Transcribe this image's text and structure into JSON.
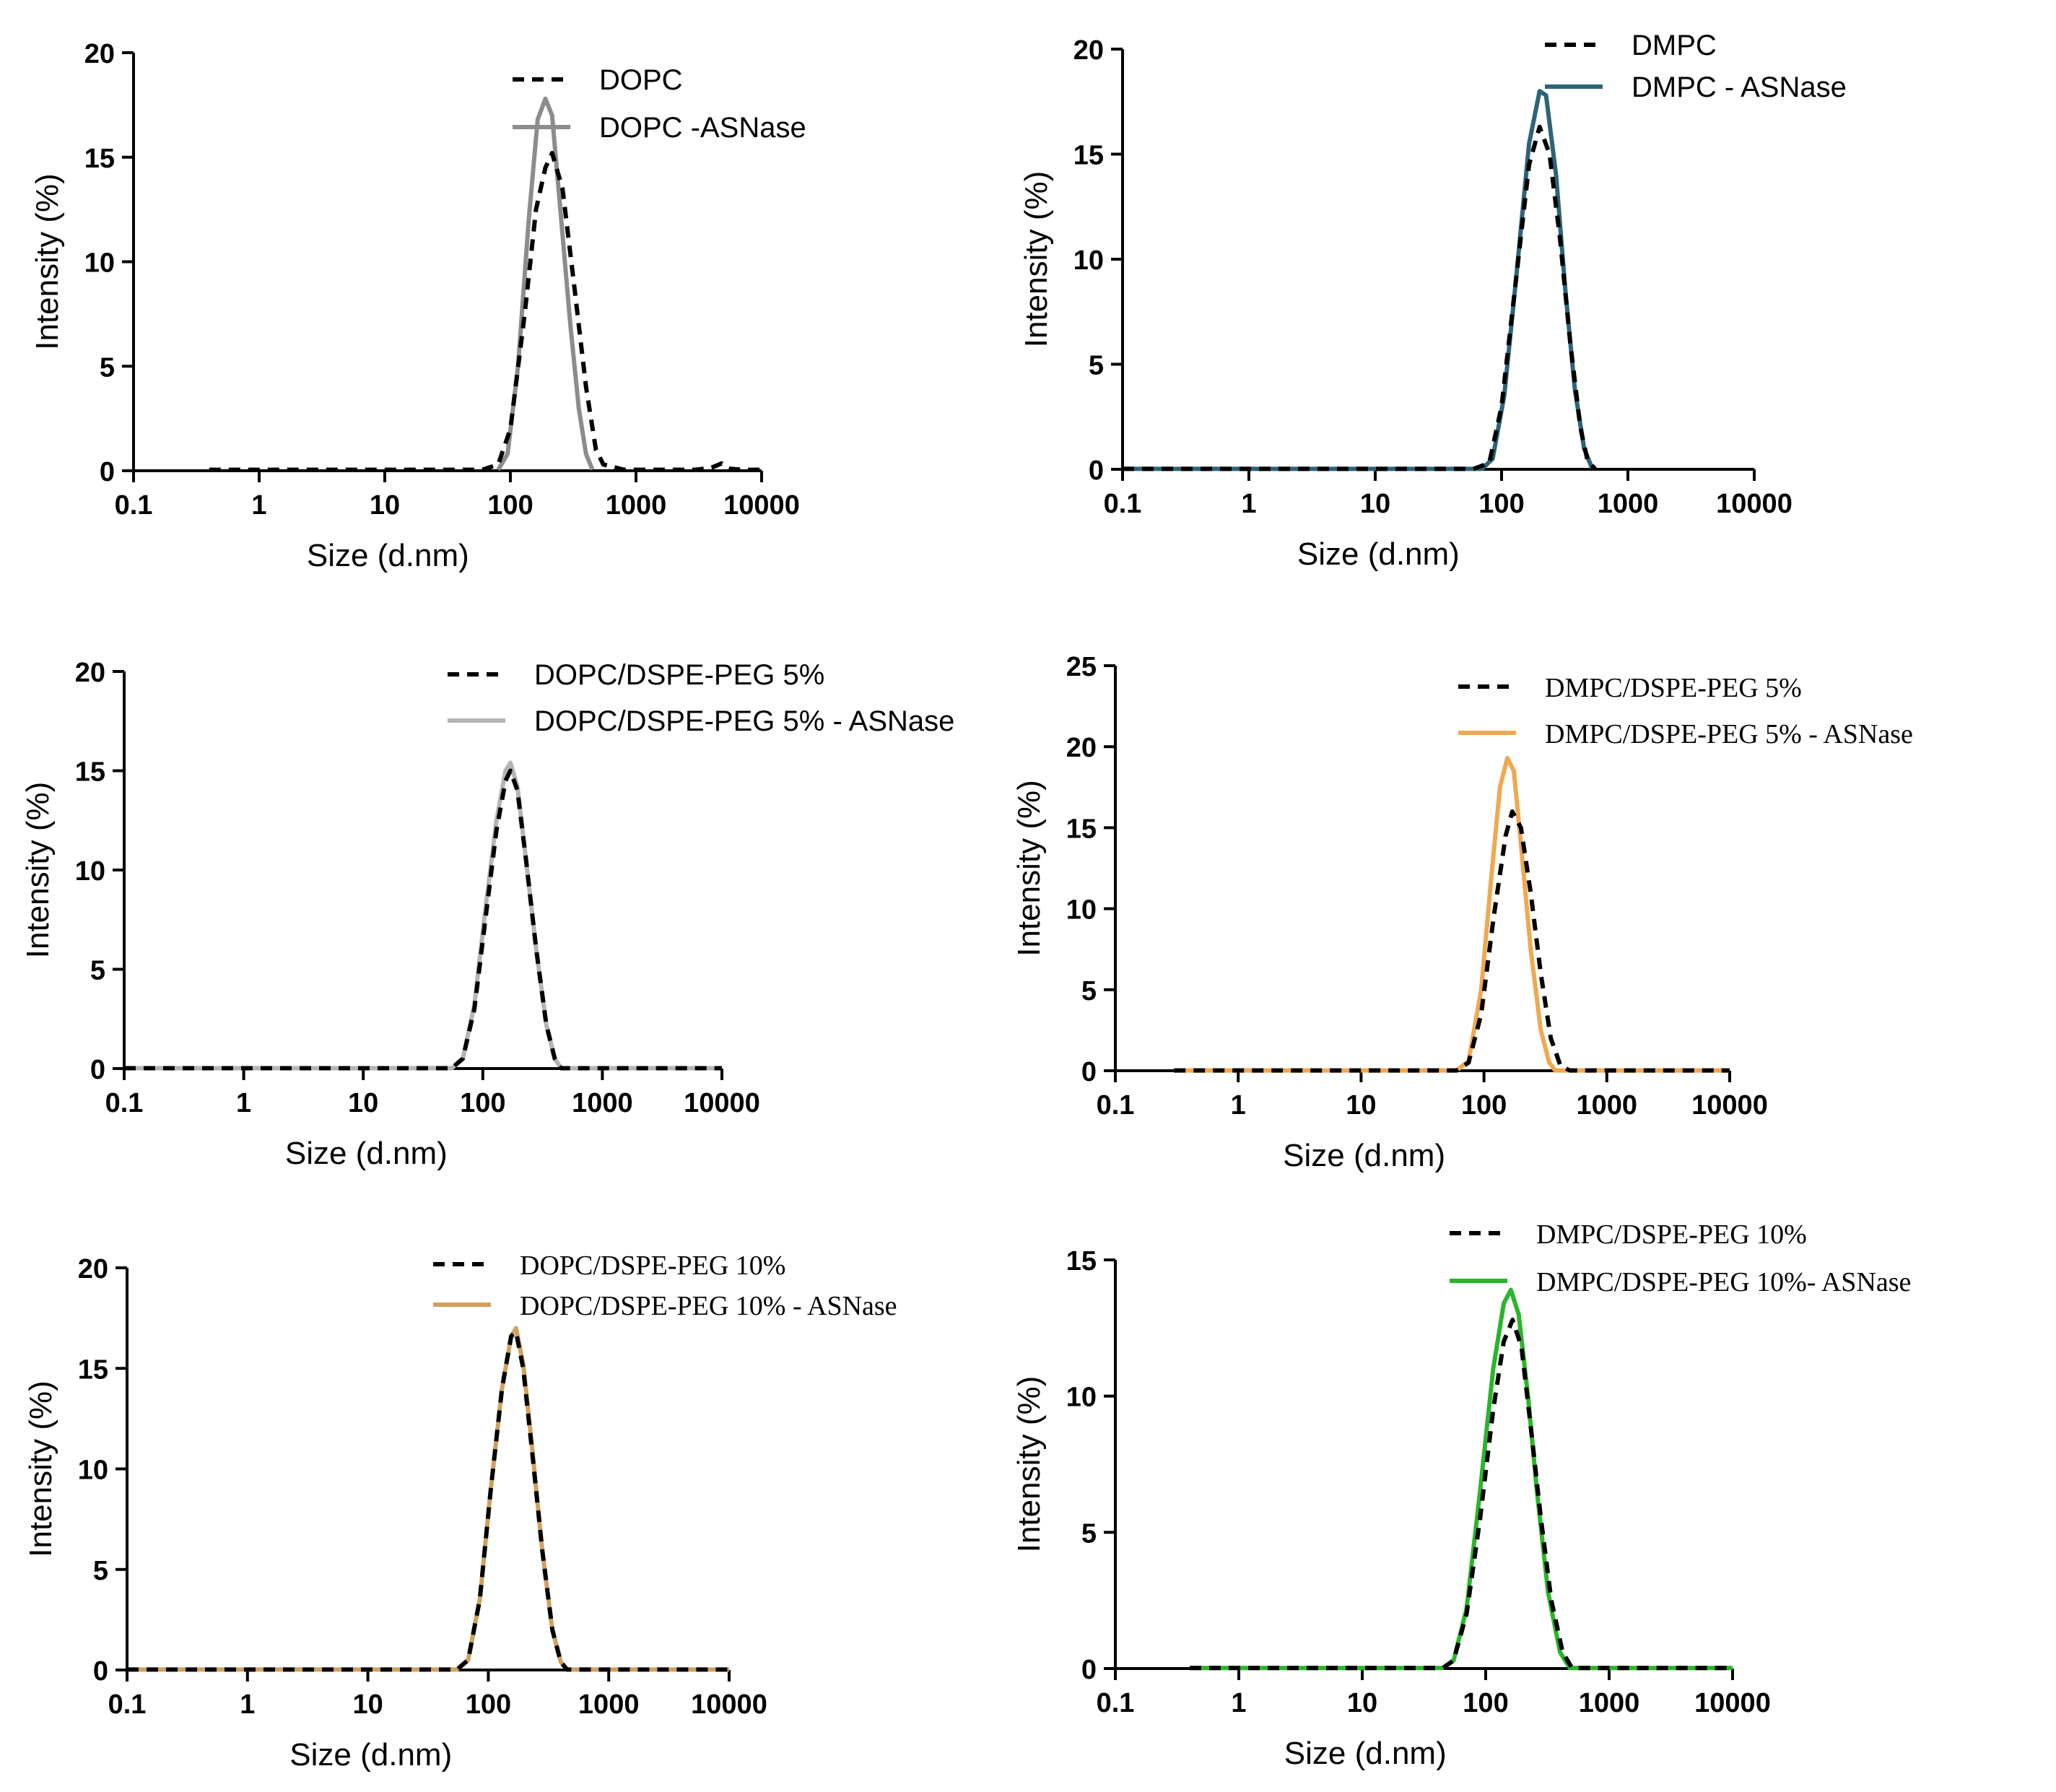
{
  "chart_data": [
    {
      "type": "line",
      "xscale": "log",
      "xlim": [
        0.1,
        10000
      ],
      "ylim": [
        0,
        20
      ],
      "xticks": [
        "0.1",
        "1",
        "10",
        "100",
        "1000",
        "10000"
      ],
      "yticks": [
        "0",
        "5",
        "10",
        "15",
        "20"
      ],
      "xlabel": "Size (d.nm)",
      "ylabel": "Intensity (%)",
      "legend_font": "sans",
      "series": [
        {
          "name": "DOPC",
          "color": "#000000",
          "style": "dashed",
          "points": [
            [
              0.4,
              0.05
            ],
            [
              1,
              0.05
            ],
            [
              10,
              0.05
            ],
            [
              60,
              0.05
            ],
            [
              80,
              0.3
            ],
            [
              100,
              2
            ],
            [
              130,
              7.5
            ],
            [
              160,
              12.5
            ],
            [
              190,
              14.5
            ],
            [
              215,
              15.2
            ],
            [
              260,
              13.5
            ],
            [
              320,
              9
            ],
            [
              400,
              4
            ],
            [
              480,
              1
            ],
            [
              550,
              0.3
            ],
            [
              800,
              0.05
            ],
            [
              3000,
              0.05
            ],
            [
              4000,
              0.15
            ],
            [
              4800,
              0.35
            ],
            [
              5500,
              0.1
            ],
            [
              7000,
              0.05
            ],
            [
              10000,
              0.05
            ]
          ]
        },
        {
          "name": "DOPC -ASNase",
          "color": "#8c8c8c",
          "style": "solid",
          "points": [
            [
              80,
              0.05
            ],
            [
              95,
              0.8
            ],
            [
              115,
              5
            ],
            [
              140,
              12
            ],
            [
              165,
              16.8
            ],
            [
              190,
              17.8
            ],
            [
              215,
              17
            ],
            [
              250,
              12.5
            ],
            [
              300,
              7
            ],
            [
              350,
              3
            ],
            [
              400,
              0.8
            ],
            [
              450,
              0.05
            ]
          ]
        }
      ]
    },
    {
      "type": "line",
      "xscale": "log",
      "xlim": [
        0.1,
        10000
      ],
      "ylim": [
        0,
        20
      ],
      "xticks": [
        "0.1",
        "1",
        "10",
        "100",
        "1000",
        "10000"
      ],
      "yticks": [
        "0",
        "5",
        "10",
        "15",
        "20"
      ],
      "xlabel": "Size (d.nm)",
      "ylabel": "Intensity (%)",
      "legend_font": "sans",
      "series": [
        {
          "name": "DMPC",
          "color": "#000000",
          "style": "dashed",
          "points": [
            [
              0.1,
              0.02
            ],
            [
              10,
              0.02
            ],
            [
              60,
              0.02
            ],
            [
              80,
              0.3
            ],
            [
              100,
              3
            ],
            [
              130,
              9
            ],
            [
              165,
              14.5
            ],
            [
              200,
              16.3
            ],
            [
              240,
              15
            ],
            [
              290,
              11
            ],
            [
              350,
              6
            ],
            [
              420,
              2
            ],
            [
              480,
              0.4
            ],
            [
              550,
              0.02
            ]
          ]
        },
        {
          "name": "DMPC - ASNase",
          "color": "#2c6478",
          "style": "solid",
          "points": [
            [
              0.1,
              0.02
            ],
            [
              10,
              0.02
            ],
            [
              70,
              0.02
            ],
            [
              85,
              0.5
            ],
            [
              105,
              3.5
            ],
            [
              130,
              9
            ],
            [
              165,
              15.5
            ],
            [
              200,
              18
            ],
            [
              225,
              17.8
            ],
            [
              270,
              14
            ],
            [
              320,
              8.5
            ],
            [
              380,
              3.8
            ],
            [
              450,
              1
            ],
            [
              520,
              0.05
            ]
          ]
        }
      ]
    },
    {
      "type": "line",
      "xscale": "log",
      "xlim": [
        0.1,
        10000
      ],
      "ylim": [
        0,
        20
      ],
      "xticks": [
        "0.1",
        "1",
        "10",
        "100",
        "1000",
        "10000"
      ],
      "yticks": [
        "0",
        "5",
        "10",
        "15",
        "20"
      ],
      "xlabel": "Size (d.nm)",
      "ylabel": "Intensity (%)",
      "legend_font": "sans",
      "series": [
        {
          "name": "DOPC/DSPE-PEG 5%",
          "color": "#000000",
          "style": "dashed",
          "points": [
            [
              0.1,
              0.02
            ],
            [
              10,
              0.02
            ],
            [
              55,
              0.02
            ],
            [
              68,
              0.5
            ],
            [
              85,
              3
            ],
            [
              105,
              7.5
            ],
            [
              130,
              12
            ],
            [
              155,
              14.5
            ],
            [
              170,
              15
            ],
            [
              195,
              14
            ],
            [
              230,
              10.5
            ],
            [
              280,
              6
            ],
            [
              340,
              2.2
            ],
            [
              400,
              0.5
            ],
            [
              450,
              0.02
            ],
            [
              10000,
              0.02
            ]
          ]
        },
        {
          "name": "DOPC/DSPE-PEG 5% - ASNase",
          "color": "#b4b4b4",
          "style": "solid",
          "points": [
            [
              0.1,
              0.02
            ],
            [
              10,
              0.02
            ],
            [
              55,
              0.02
            ],
            [
              68,
              0.5
            ],
            [
              85,
              3.2
            ],
            [
              105,
              8
            ],
            [
              130,
              12.5
            ],
            [
              155,
              15
            ],
            [
              170,
              15.4
            ],
            [
              195,
              14.2
            ],
            [
              230,
              10.5
            ],
            [
              280,
              6
            ],
            [
              340,
              2.2
            ],
            [
              400,
              0.5
            ],
            [
              450,
              0.02
            ],
            [
              10000,
              0.02
            ]
          ]
        }
      ]
    },
    {
      "type": "line",
      "xscale": "log",
      "xlim": [
        0.1,
        10000
      ],
      "ylim": [
        0,
        25
      ],
      "xticks": [
        "0.1",
        "1",
        "10",
        "100",
        "1000",
        "10000"
      ],
      "yticks": [
        "0",
        "5",
        "10",
        "15",
        "20",
        "25"
      ],
      "xlabel": "Size (d.nm)",
      "ylabel": "Intensity (%)",
      "legend_font": "serif",
      "series": [
        {
          "name": "DMPC/DSPE-PEG 5%",
          "color": "#000000",
          "style": "dashed",
          "points": [
            [
              0.3,
              0.02
            ],
            [
              10,
              0.02
            ],
            [
              60,
              0.02
            ],
            [
              75,
              0.5
            ],
            [
              95,
              3.5
            ],
            [
              120,
              9.5
            ],
            [
              150,
              14.5
            ],
            [
              170,
              16
            ],
            [
              200,
              15
            ],
            [
              240,
              11
            ],
            [
              290,
              6
            ],
            [
              350,
              2
            ],
            [
              420,
              0.3
            ],
            [
              500,
              0.02
            ],
            [
              10000,
              0.02
            ]
          ]
        },
        {
          "name": "DMPC/DSPE-PEG 5% - ASNase",
          "color": "#f0a850",
          "style": "solid",
          "points": [
            [
              0.3,
              0.02
            ],
            [
              10,
              0.02
            ],
            [
              60,
              0.02
            ],
            [
              75,
              0.6
            ],
            [
              95,
              5
            ],
            [
              115,
              12
            ],
            [
              135,
              17.5
            ],
            [
              155,
              19.3
            ],
            [
              175,
              18.5
            ],
            [
              200,
              14
            ],
            [
              240,
              7.5
            ],
            [
              290,
              2.5
            ],
            [
              340,
              0.5
            ],
            [
              380,
              0.02
            ],
            [
              10000,
              0.02
            ]
          ]
        }
      ]
    },
    {
      "type": "line",
      "xscale": "log",
      "xlim": [
        0.1,
        10000
      ],
      "ylim": [
        0,
        20
      ],
      "xticks": [
        "0.1",
        "1",
        "10",
        "100",
        "1000",
        "10000"
      ],
      "yticks": [
        "0",
        "5",
        "10",
        "15",
        "20"
      ],
      "xlabel": "Size (d.nm)",
      "ylabel": "Intensity (%)",
      "legend_font": "serif",
      "series": [
        {
          "name": "DOPC/DSPE-PEG 10%",
          "color": "#000000",
          "style": "dashed",
          "points": [
            [
              0.1,
              0.02
            ],
            [
              10,
              0.02
            ],
            [
              55,
              0.02
            ],
            [
              68,
              0.5
            ],
            [
              85,
              3.5
            ],
            [
              105,
              9
            ],
            [
              130,
              14
            ],
            [
              155,
              16.6
            ],
            [
              170,
              16.8
            ],
            [
              195,
              15
            ],
            [
              230,
              11
            ],
            [
              280,
              6
            ],
            [
              340,
              2
            ],
            [
              400,
              0.4
            ],
            [
              450,
              0.02
            ],
            [
              10000,
              0.02
            ]
          ]
        },
        {
          "name": "DOPC/DSPE-PEG 10% - ASNase",
          "color": "#d0a060",
          "style": "solid",
          "points": [
            [
              0.1,
              0.02
            ],
            [
              10,
              0.02
            ],
            [
              55,
              0.02
            ],
            [
              68,
              0.5
            ],
            [
              85,
              3.5
            ],
            [
              105,
              9
            ],
            [
              130,
              14
            ],
            [
              155,
              16.6
            ],
            [
              170,
              17
            ],
            [
              195,
              15.2
            ],
            [
              230,
              11.2
            ],
            [
              280,
              6
            ],
            [
              340,
              2
            ],
            [
              400,
              0.4
            ],
            [
              450,
              0.02
            ],
            [
              10000,
              0.02
            ]
          ]
        }
      ]
    },
    {
      "type": "line",
      "xscale": "log",
      "xlim": [
        0.1,
        10000
      ],
      "ylim": [
        0,
        15
      ],
      "xticks": [
        "0.1",
        "1",
        "10",
        "100",
        "1000",
        "10000"
      ],
      "yticks": [
        "0",
        "5",
        "10",
        "15"
      ],
      "xlabel": "Size (d.nm)",
      "ylabel": "Intensity (%)",
      "legend_font": "serif",
      "series": [
        {
          "name": "DMPC/DSPE-PEG 10%",
          "color": "#000000",
          "style": "dashed",
          "points": [
            [
              0.4,
              0.02
            ],
            [
              10,
              0.02
            ],
            [
              45,
              0.02
            ],
            [
              55,
              0.3
            ],
            [
              70,
              2
            ],
            [
              90,
              5.5
            ],
            [
              115,
              9.5
            ],
            [
              140,
              12
            ],
            [
              165,
              12.8
            ],
            [
              195,
              11.8
            ],
            [
              230,
              9
            ],
            [
              280,
              5.5
            ],
            [
              340,
              2.5
            ],
            [
              420,
              0.6
            ],
            [
              500,
              0.02
            ],
            [
              10000,
              0.02
            ]
          ]
        },
        {
          "name": "DMPC/DSPE-PEG 10%- ASNase",
          "color": "#2ab52a",
          "style": "solid",
          "points": [
            [
              0.4,
              0.02
            ],
            [
              10,
              0.02
            ],
            [
              45,
              0.02
            ],
            [
              55,
              0.3
            ],
            [
              70,
              2.2
            ],
            [
              90,
              6.5
            ],
            [
              115,
              11
            ],
            [
              140,
              13.4
            ],
            [
              160,
              13.9
            ],
            [
              185,
              13
            ],
            [
              220,
              10
            ],
            [
              260,
              6.5
            ],
            [
              320,
              2.8
            ],
            [
              400,
              0.6
            ],
            [
              480,
              0.02
            ],
            [
              10000,
              0.02
            ]
          ]
        }
      ]
    }
  ]
}
